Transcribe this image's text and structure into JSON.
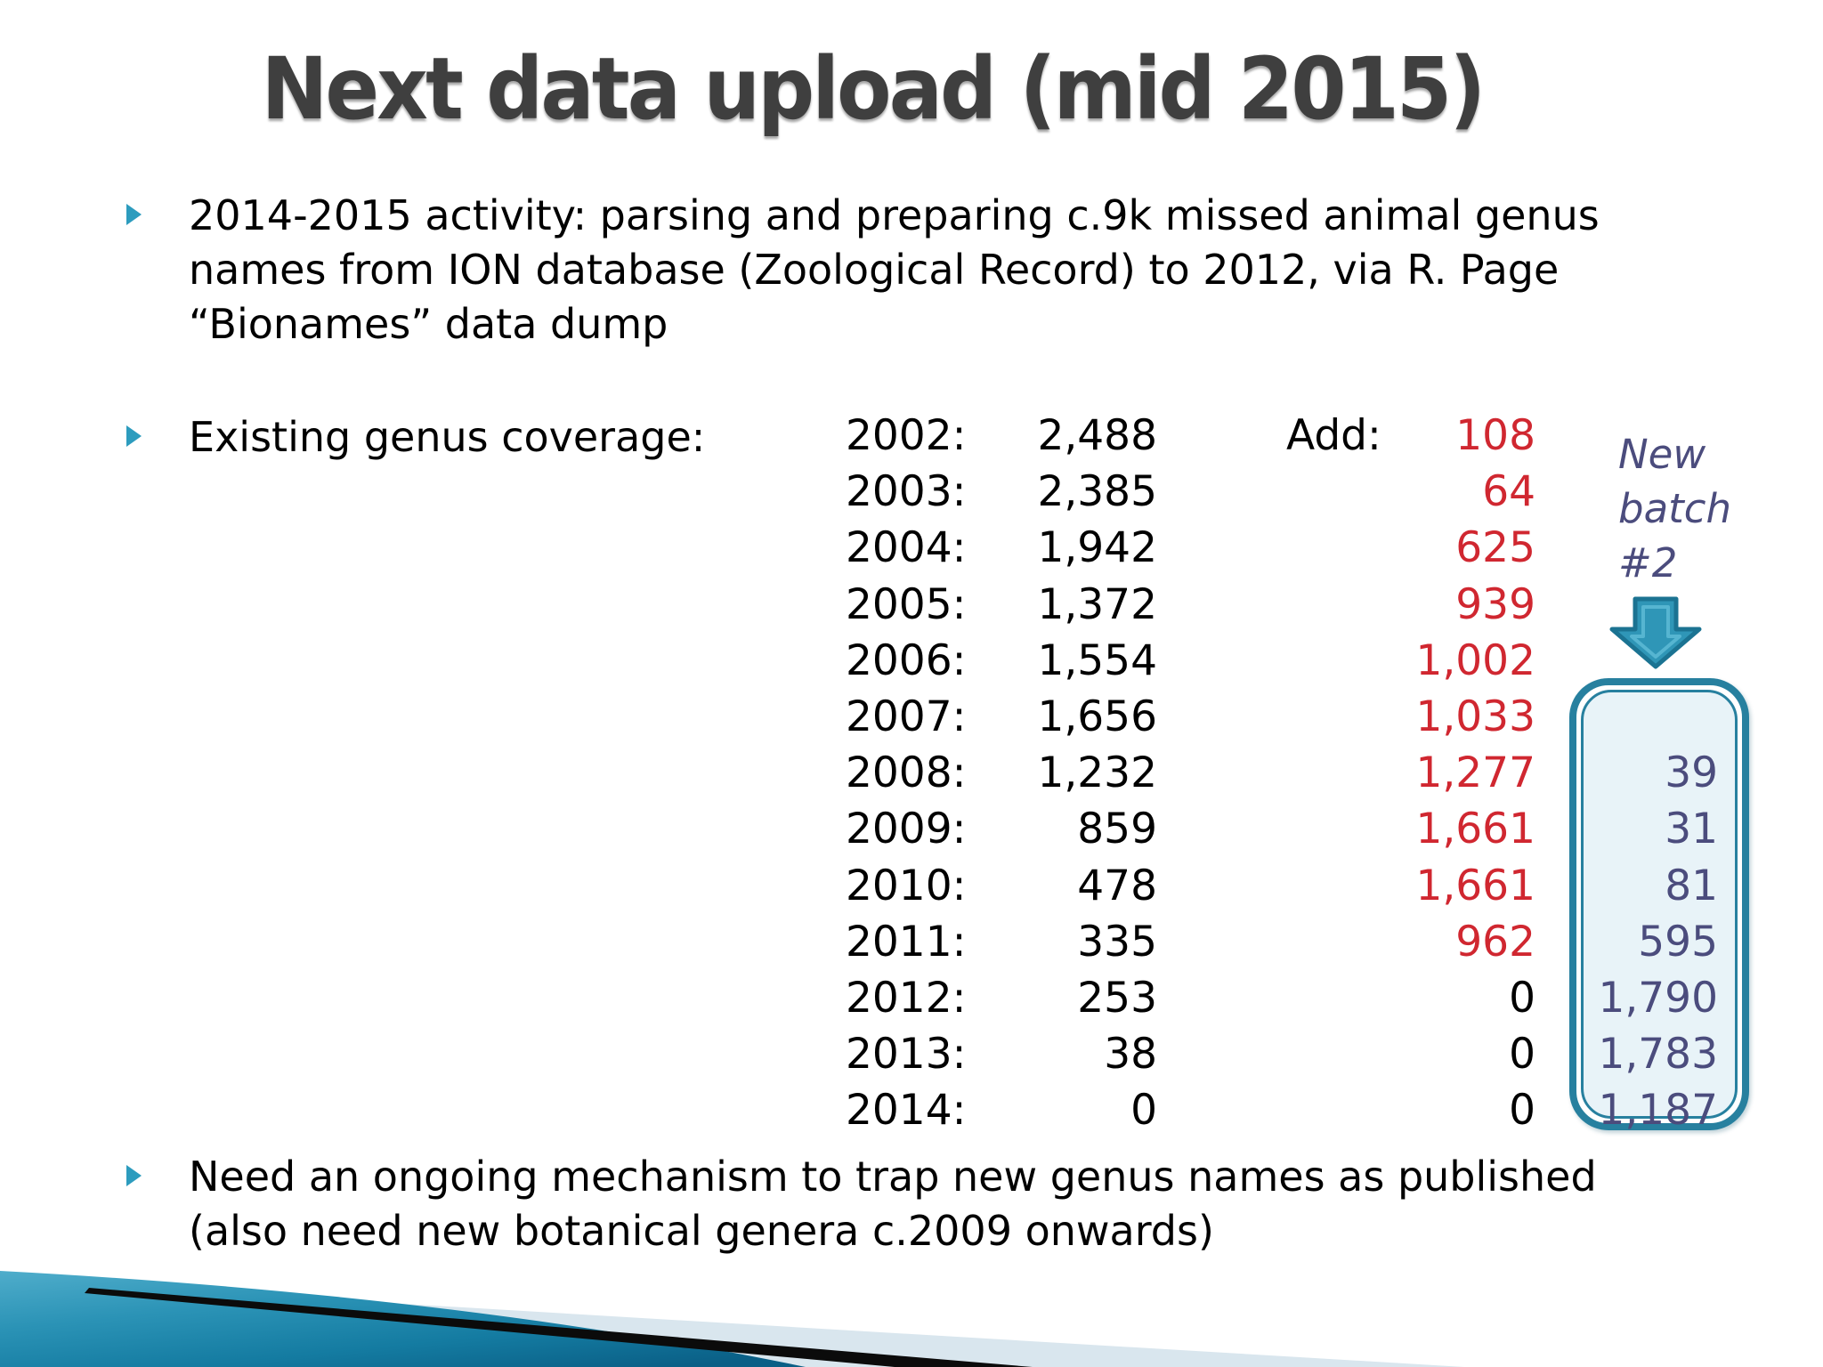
{
  "slide": {
    "title": "Next data upload (mid 2015)",
    "bullet1": "2014-2015 activity: parsing and preparing c.9k missed animal genus\nnames from ION database (Zoological Record) to 2012, via R. Page\n“Bionames” data dump",
    "bullet2_label": "Existing genus coverage:",
    "bullet3": "Need an ongoing mechanism to trap new genus names as published\n(also need new botanical genera c.2009 onwards)",
    "add_header": "Add:",
    "new_batch_label": "New batch #2"
  },
  "coverage_table": {
    "columns": [
      "year",
      "existing_count",
      "added",
      "new_batch_2"
    ],
    "rows": [
      {
        "year": "2002:",
        "existing": "2,488",
        "add": "108",
        "add_black": false,
        "batch2": ""
      },
      {
        "year": "2003:",
        "existing": "2,385",
        "add": "64",
        "add_black": false,
        "batch2": ""
      },
      {
        "year": "2004:",
        "existing": "1,942",
        "add": "625",
        "add_black": false,
        "batch2": ""
      },
      {
        "year": "2005:",
        "existing": "1,372",
        "add": "939",
        "add_black": false,
        "batch2": ""
      },
      {
        "year": "2006:",
        "existing": "1,554",
        "add": "1,002",
        "add_black": false,
        "batch2": ""
      },
      {
        "year": "2007:",
        "existing": "1,656",
        "add": "1,033",
        "add_black": false,
        "batch2": ""
      },
      {
        "year": "2008:",
        "existing": "1,232",
        "add": "1,277",
        "add_black": false,
        "batch2": "39"
      },
      {
        "year": "2009:",
        "existing": "859",
        "add": "1,661",
        "add_black": false,
        "batch2": "31"
      },
      {
        "year": "2010:",
        "existing": "478",
        "add": "1,661",
        "add_black": false,
        "batch2": "81"
      },
      {
        "year": "2011:",
        "existing": "335",
        "add": "962",
        "add_black": false,
        "batch2": "595"
      },
      {
        "year": "2012:",
        "existing": "253",
        "add": "0",
        "add_black": true,
        "batch2": "1,790"
      },
      {
        "year": "2013:",
        "existing": "38",
        "add": "0",
        "add_black": true,
        "batch2": "1,783"
      },
      {
        "year": "2014:",
        "existing": "0",
        "add": "0",
        "add_black": true,
        "batch2": "1,187"
      }
    ]
  },
  "colors": {
    "title_gray": "#3f3f3f",
    "bullet_teal": "#2d9cbe",
    "add_red": "#d02730",
    "batch_navy": "#4b4c7d",
    "box_border_teal": "#27809f",
    "box_fill": "#e8f3f8",
    "footer_teal_light": "#4fadcb",
    "footer_teal_dark": "#0a5f86",
    "footer_pale": "#d9e6ee",
    "footer_black": "#0b0b0b"
  }
}
